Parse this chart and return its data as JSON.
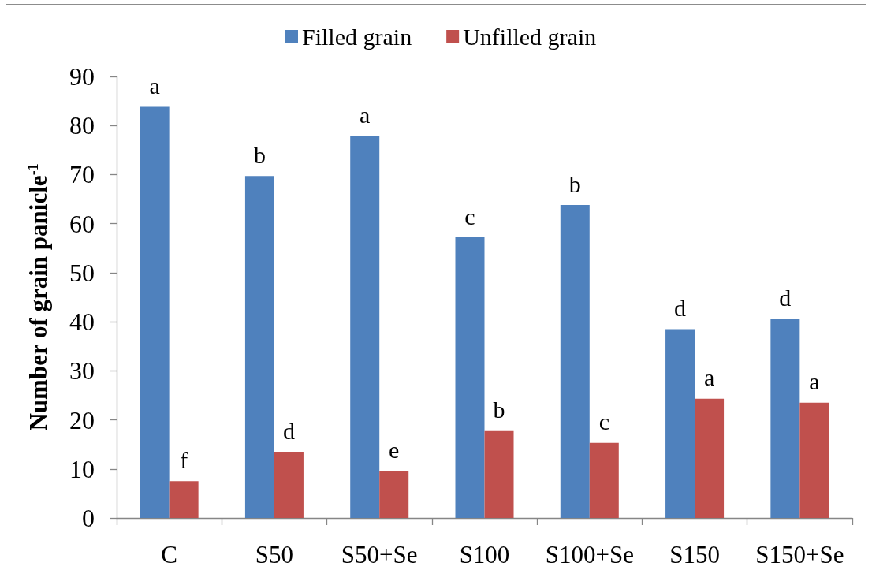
{
  "chart_data": {
    "type": "bar",
    "ylabel": "Number of grain panicle$^{-1}$",
    "categories": [
      "C",
      "S50",
      "S50+Se",
      "S100",
      "S100+Se",
      "S150",
      "S150+Se"
    ],
    "series": [
      {
        "name": "Filled grain",
        "color": "#4f81bd",
        "values": [
          83.8,
          69.7,
          77.8,
          57.2,
          63.8,
          38.5,
          40.6
        ],
        "value_labels": [
          "a",
          "b",
          "a",
          "c",
          "b",
          "d",
          "d"
        ]
      },
      {
        "name": "Unfilled grain",
        "color": "#c0504d",
        "values": [
          7.5,
          13.5,
          9.5,
          17.7,
          15.3,
          24.3,
          23.5
        ],
        "value_labels": [
          "f",
          "d",
          "e",
          "b",
          "c",
          "a",
          "a"
        ]
      }
    ],
    "ylim": [
      0,
      90
    ],
    "yticks": [
      0,
      10,
      20,
      30,
      40,
      50,
      60,
      70,
      80,
      90
    ],
    "grid": false,
    "legend": "top"
  }
}
